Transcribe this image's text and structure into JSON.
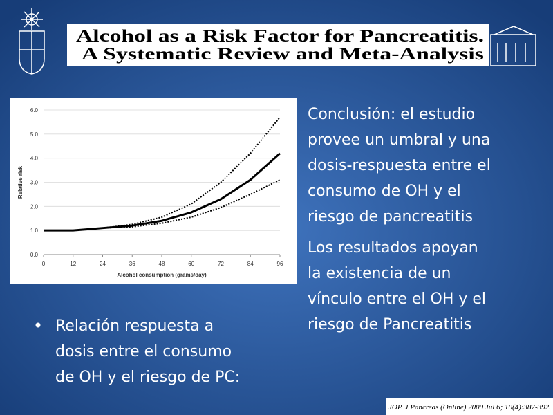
{
  "header": {
    "title_lines": [
      "Alcohol as a Risk Factor for Pancreatitis.",
      "A Systematic Review and Meta-Analysis"
    ]
  },
  "chart_data": {
    "type": "line",
    "x_label": "Alcohol consumption (grams/day)",
    "y_label": "Relative risk",
    "x": [
      0,
      12,
      24,
      36,
      48,
      60,
      72,
      84,
      96
    ],
    "series": [
      {
        "color": "#000000",
        "style": "dotted",
        "values": [
          1.0,
          1.0,
          1.1,
          1.25,
          1.55,
          2.1,
          3.0,
          4.2,
          5.7
        ]
      },
      {
        "color": "#000000",
        "style": "solid",
        "values": [
          1.0,
          1.0,
          1.1,
          1.2,
          1.4,
          1.75,
          2.3,
          3.1,
          4.2
        ]
      },
      {
        "color": "#000000",
        "style": "dotted",
        "values": [
          1.0,
          1.0,
          1.1,
          1.15,
          1.3,
          1.55,
          1.95,
          2.5,
          3.1
        ]
      }
    ],
    "xlim": [
      0,
      96
    ],
    "xticks": [
      0,
      12,
      24,
      36,
      48,
      60,
      72,
      84,
      96
    ],
    "ylim": [
      0,
      6
    ],
    "yticks": [
      {
        "value": 0,
        "label": "0.0"
      },
      {
        "value": 1,
        "label": "1.0"
      },
      {
        "value": 2,
        "label": "2.0"
      },
      {
        "value": 3,
        "label": "3.0"
      },
      {
        "value": 4,
        "label": "4.0"
      },
      {
        "value": 5,
        "label": "5.0"
      },
      {
        "value": 6,
        "label": "6.0"
      }
    ],
    "grid": true
  },
  "conclusion_lines": [
    "Conclusión: el estudio",
    "provee un umbral y una",
    "dosis-respuesta entre el",
    "consumo de OH y el",
    "riesgo de pancreatitis"
  ],
  "results_lines": [
    "Los resultados apoyan",
    "la existencia de un",
    "vínculo entre el OH y el",
    "riesgo de Pancreatitis"
  ],
  "bullet_lines": [
    "Relación respuesta a",
    "dosis entre el consumo",
    "de OH y el riesgo de PC:"
  ],
  "citation": "JOP. J Pancreas (Online) 2009 Jul 6; 10(4):387-392."
}
